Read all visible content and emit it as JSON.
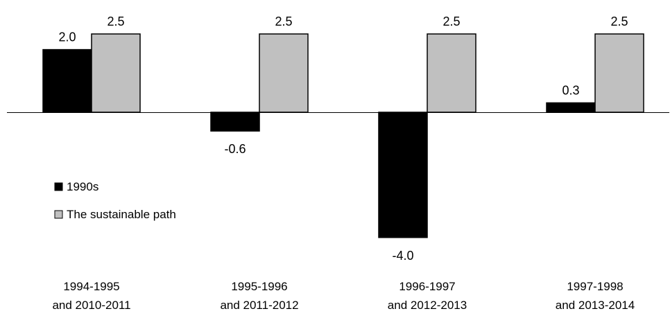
{
  "chart_data": {
    "type": "bar",
    "title": "",
    "xlabel": "",
    "ylabel": "",
    "categories": [
      [
        "1994-1995",
        "and 2010-2011"
      ],
      [
        "1995-1996",
        "and 2011-2012"
      ],
      [
        "1996-1997",
        "and 2012-2013"
      ],
      [
        "1997-1998",
        "and 2013-2014"
      ]
    ],
    "series": [
      {
        "name": "1990s",
        "color": "#000000",
        "values": [
          2.0,
          -0.6,
          -4.0,
          0.3
        ],
        "labels": [
          "2.0",
          "-0.6",
          "-4.0",
          "0.3"
        ]
      },
      {
        "name": "The sustainable path",
        "color": "#c0c0c0",
        "values": [
          2.5,
          2.5,
          2.5,
          2.5
        ],
        "labels": [
          "2.5",
          "2.5",
          "2.5",
          "2.5"
        ]
      }
    ],
    "ylim": [
      -4.0,
      2.5
    ],
    "grid": false,
    "legend_position": "left-middle"
  }
}
